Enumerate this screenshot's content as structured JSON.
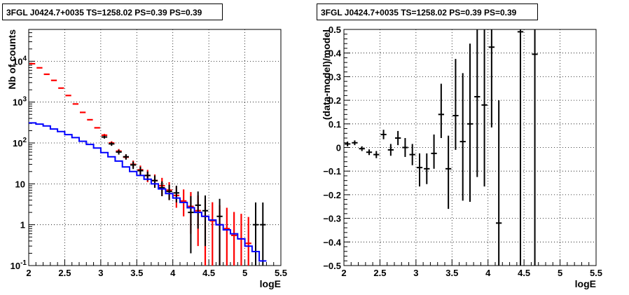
{
  "chart_data": [
    {
      "type": "scatter",
      "title": "3FGL J0424.7+0035 TS=1258.02 PS=0.39 PS=0.39",
      "xlabel": "logE",
      "ylabel": "Nb of counts",
      "xlim": [
        2,
        5.5
      ],
      "ylim": [
        0.1,
        60000
      ],
      "yscale": "log",
      "grid": true,
      "xticks": [
        "2",
        "2.5",
        "3",
        "3.5",
        "4",
        "4.5",
        "5",
        "5.5"
      ],
      "yticks": [
        {
          "value": 0.1,
          "base": "10",
          "exp": "-1"
        },
        {
          "value": 1,
          "base": "1",
          "exp": ""
        },
        {
          "value": 10,
          "base": "10",
          "exp": ""
        },
        {
          "value": 100,
          "base": "10",
          "exp": "2"
        },
        {
          "value": 1000,
          "base": "10",
          "exp": "3"
        },
        {
          "value": 10000,
          "base": "10",
          "exp": "4"
        }
      ],
      "bin_width": 0.1,
      "series": [
        {
          "kind": "points-red",
          "color": "#ff0000",
          "x": [
            2.05,
            2.15,
            2.25,
            2.35,
            2.45,
            2.55,
            2.65,
            2.75,
            2.85,
            2.95,
            3.05,
            3.15,
            3.25,
            3.35,
            3.45,
            3.55,
            3.65,
            3.75,
            3.85,
            3.95,
            4.05,
            4.15,
            4.25,
            4.35,
            4.45,
            4.55,
            4.65,
            4.75,
            4.85,
            4.95,
            5.05
          ],
          "y": [
            8700,
            6900,
            4800,
            3400,
            2200,
            1450,
            900,
            560,
            370,
            235,
            155,
            100,
            63,
            45,
            30,
            22,
            16,
            12,
            9,
            7,
            5.2,
            3.8,
            2.8,
            2.2,
            1.6,
            1.25,
            1,
            0.8,
            0.55,
            0.45,
            0.35
          ],
          "err_lo": [
            0,
            0,
            0,
            0,
            0,
            0,
            0,
            0,
            0,
            0,
            10,
            8,
            6,
            5,
            5,
            5,
            5,
            4,
            4,
            3,
            2.6,
            2.2,
            2.2,
            1.9,
            1.55,
            1.2,
            0.95,
            0.75,
            0.52,
            0.43,
            0.34
          ],
          "err_hi": [
            0,
            0,
            0,
            0,
            0,
            0,
            0,
            0,
            0,
            0,
            12,
            10,
            8,
            7,
            7,
            6,
            6,
            5,
            5,
            4,
            3.5,
            3.5,
            3.5,
            3,
            2.5,
            2.3,
            2,
            1.8,
            1.5,
            1.4,
            1.2
          ]
        },
        {
          "kind": "points-black",
          "color": "#000000",
          "x": [
            3.05,
            3.15,
            3.25,
            3.35,
            3.45,
            3.55,
            3.65,
            3.75,
            3.85,
            3.95,
            4.05,
            4.25,
            4.35,
            4.45,
            4.65,
            5.15,
            5.25
          ],
          "y": [
            140,
            95,
            60,
            46,
            29,
            21,
            16,
            12,
            8,
            6.5,
            6,
            2,
            3,
            2.2,
            1.6,
            1,
            1
          ],
          "err_lo": [
            12,
            10,
            8,
            7,
            6,
            5,
            4,
            4,
            3,
            2.5,
            2.5,
            1.8,
            2.2,
            1.9,
            1.5,
            0.95,
            0.95
          ],
          "err_hi": [
            12,
            10,
            8,
            7,
            6,
            5,
            4,
            4,
            3.5,
            3,
            3,
            3,
            3.5,
            3,
            2.7,
            2.5,
            2.5
          ]
        },
        {
          "kind": "step-blue",
          "color": "#0000ff",
          "x_edges": [
            2.0,
            2.1,
            2.2,
            2.3,
            2.4,
            2.5,
            2.6,
            2.7,
            2.8,
            2.9,
            3.0,
            3.1,
            3.2,
            3.3,
            3.4,
            3.5,
            3.6,
            3.7,
            3.8,
            3.9,
            4.0,
            4.1,
            4.2,
            4.3,
            4.4,
            4.5,
            4.6,
            4.7,
            4.8,
            4.9,
            5.0,
            5.1,
            5.2,
            5.3
          ],
          "values": [
            310,
            290,
            260,
            220,
            190,
            160,
            135,
            110,
            92,
            75,
            58,
            46,
            36,
            26,
            20,
            16,
            13,
            10,
            7.5,
            5.8,
            4.5,
            3.5,
            2.6,
            2,
            1.6,
            1.3,
            1,
            0.75,
            0.6,
            0.45,
            0.3,
            0.22,
            0.13
          ]
        }
      ]
    },
    {
      "type": "scatter",
      "title": "3FGL J0424.7+0035 TS=1258.02 PS=0.39 PS=0.39",
      "xlabel": "logE",
      "ylabel": "(data-model)/model",
      "xlim": [
        2,
        5.5
      ],
      "ylim": [
        -0.5,
        0.5
      ],
      "yscale": "linear",
      "grid": true,
      "xticks": [
        "2",
        "2.5",
        "3",
        "3.5",
        "4",
        "4.5",
        "5",
        "5.5"
      ],
      "yticks": [
        "-0.5",
        "-0.4",
        "-0.3",
        "-0.2",
        "-0.1",
        "0",
        "0.1",
        "0.2",
        "0.3",
        "0.4",
        "0.5"
      ],
      "bin_width": 0.1,
      "series": [
        {
          "kind": "points-black",
          "color": "#000000",
          "x": [
            2.05,
            2.15,
            2.25,
            2.35,
            2.45,
            2.55,
            2.65,
            2.75,
            2.85,
            2.95,
            3.05,
            3.15,
            3.25,
            3.35,
            3.45,
            3.55,
            3.65,
            3.75,
            3.85,
            3.95,
            4.05,
            4.15,
            4.45,
            4.65
          ],
          "y": [
            0.015,
            0.02,
            -0.005,
            -0.02,
            -0.03,
            0.055,
            -0.01,
            0.04,
            0.0,
            -0.03,
            -0.085,
            -0.09,
            -0.025,
            0.14,
            -0.09,
            0.135,
            0.025,
            0.1,
            0.215,
            0.18,
            0.425,
            -0.32,
            0.49,
            0.395
          ],
          "err_lo": [
            0.01,
            0.01,
            0.01,
            0.012,
            0.015,
            0.02,
            0.025,
            0.03,
            0.04,
            0.045,
            0.08,
            0.065,
            0.065,
            0.1,
            0.17,
            0.145,
            0.25,
            0.33,
            0.34,
            0.345,
            0.34,
            0.52,
            1.0,
            1.0
          ],
          "err_hi": [
            0.01,
            0.01,
            0.01,
            0.012,
            0.015,
            0.02,
            0.025,
            0.03,
            0.04,
            0.045,
            0.06,
            0.065,
            0.08,
            0.13,
            0.14,
            0.24,
            0.29,
            0.34,
            0.4,
            0.38,
            0.3,
            0.52,
            1.0,
            1.0
          ]
        }
      ]
    }
  ]
}
